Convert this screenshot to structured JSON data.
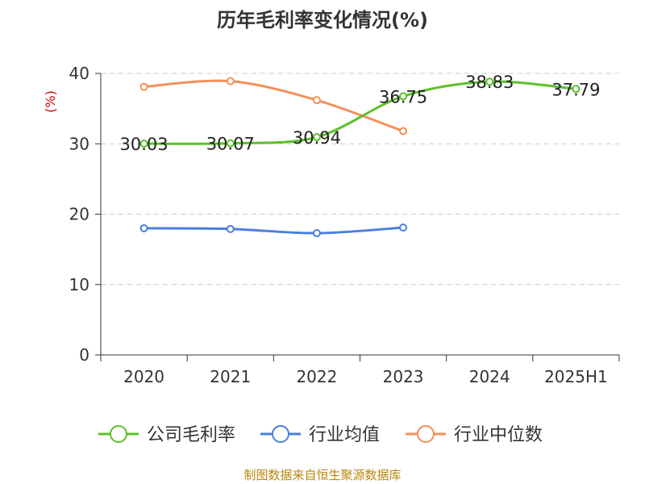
{
  "chart_data": {
    "type": "line",
    "title": "历年毛利率变化情况(%)",
    "ylabel": "(%)",
    "xlabel": "",
    "categories": [
      "2020",
      "2021",
      "2022",
      "2023",
      "2024",
      "2025H1"
    ],
    "ylim": [
      0,
      40
    ],
    "yticks": [
      0,
      10,
      20,
      30,
      40
    ],
    "grid": true,
    "legend_position": "bottom",
    "series": [
      {
        "name": "公司毛利率",
        "color": "#5cc02a",
        "values": [
          30.03,
          30.07,
          30.94,
          36.75,
          38.83,
          37.79
        ],
        "labels": [
          "30.03",
          "30.07",
          "30.94",
          "36.75",
          "38.83",
          "37.79"
        ]
      },
      {
        "name": "行业均值",
        "color": "#4a7fe0",
        "values": [
          18.0,
          17.9,
          17.3,
          18.1,
          null,
          null
        ]
      },
      {
        "name": "行业中位数",
        "color": "#f5905a",
        "values": [
          38.1,
          38.9,
          36.2,
          31.8,
          null,
          null
        ]
      }
    ]
  },
  "footer": {
    "source": "制图数据来自恒生聚源数据库"
  },
  "colors": {
    "title": "#333333",
    "axis_text": "#333333",
    "ylabel": "#cc0000",
    "source": "#b8860b",
    "grid": "#cccccc"
  }
}
